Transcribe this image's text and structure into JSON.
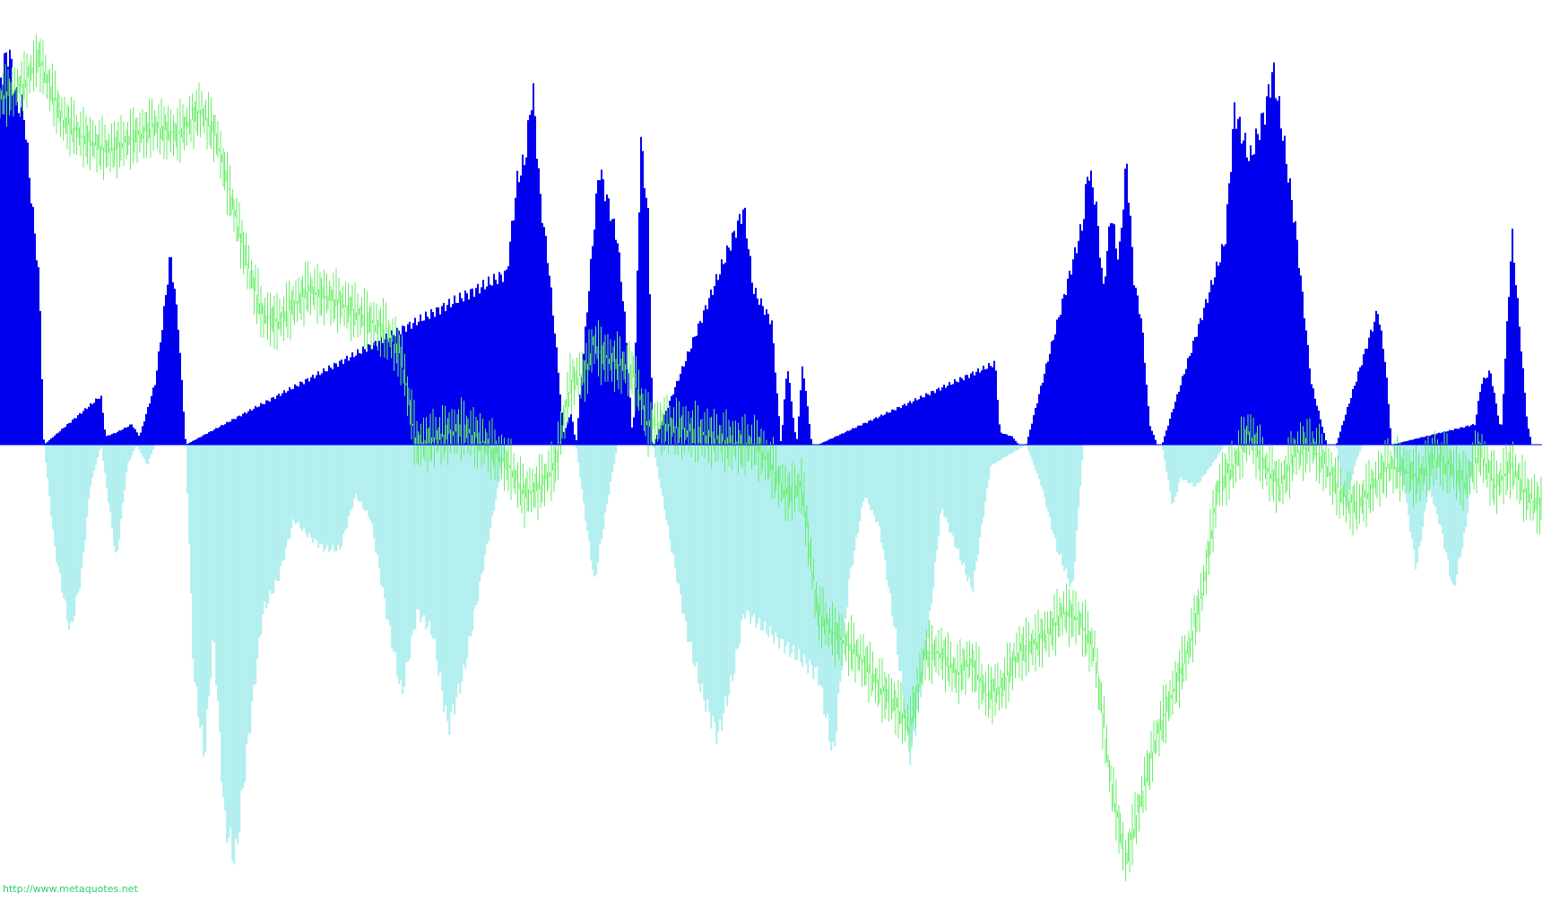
{
  "watermark": "http://www.metaquotes.net",
  "colors": {
    "background": "#ffffff",
    "positive_histogram": "#0000ee",
    "negative_histogram": "#afeeee",
    "price_line": "#66ee66"
  },
  "chart_data": {
    "type": "area",
    "title": "",
    "xlabel": "",
    "ylabel": "",
    "grid": false,
    "legend": "none",
    "x_range": [
      0,
      100
    ],
    "ylim": [
      -1,
      1
    ],
    "series": [
      {
        "kind": "histogram",
        "color": "#0000ee",
        "baseline": 0,
        "x": [
          0,
          0.5,
          1.0,
          1.5,
          2.0,
          2.5,
          2.8,
          6.5,
          6.8,
          7.5,
          8.5,
          9.0,
          10.0,
          10.5,
          11.0,
          11.5,
          12.0,
          32.8,
          33.5,
          34.0,
          34.5,
          35.0,
          35.5,
          36.0,
          36.5,
          37.0,
          37.3,
          38.5,
          38.8,
          40.0,
          40.5,
          41.0,
          41.5,
          42.0,
          42.3,
          48.2,
          48.8,
          49.4,
          50.0,
          50.6,
          51.0,
          51.6,
          52.0,
          52.6,
          53.0,
          64.5,
          64.8,
          65.6,
          66.0,
          66.5,
          70.2,
          70.5,
          71.0,
          71.5,
          72.0,
          72.5,
          73.0,
          73.5,
          74.0,
          74.5,
          75.0,
          75.3,
          79.4,
          80.0,
          81.0,
          82.0,
          82.5,
          83.0,
          84.0,
          85.0,
          86.0,
          86.6,
          89.3,
          89.8,
          90.2,
          95.6,
          96.0,
          96.6,
          97.3,
          98.0,
          98.3,
          99.0,
          99.3
        ],
        "y": [
          0.9,
          0.97,
          0.85,
          0.82,
          0.6,
          0.4,
          0,
          0.12,
          0.02,
          0.03,
          0.05,
          0.02,
          0.15,
          0.3,
          0.47,
          0.3,
          0,
          0.42,
          0.65,
          0.7,
          0.88,
          0.6,
          0.45,
          0.25,
          0.03,
          0.08,
          0,
          0.55,
          0.68,
          0.5,
          0.3,
          0,
          0.75,
          0.55,
          0,
          0.58,
          0.38,
          0.34,
          0.3,
          0.0,
          0.2,
          0.0,
          0.2,
          0.0,
          0.0,
          0.2,
          0.03,
          0.02,
          0.0,
          0.0,
          0.55,
          0.68,
          0.6,
          0.38,
          0.57,
          0.45,
          0.7,
          0.4,
          0.3,
          0.05,
          0,
          0,
          0.5,
          0.82,
          0.7,
          0.82,
          0.92,
          0.8,
          0.52,
          0.15,
          0,
          0,
          0.33,
          0.2,
          0,
          0.05,
          0.15,
          0.18,
          0.03,
          0.52,
          0.38,
          0.05,
          0
        ]
      },
      {
        "kind": "histogram",
        "color": "#afeeee",
        "baseline": 0,
        "x": [
          2.8,
          3.5,
          4.5,
          5.2,
          5.8,
          6.5,
          7.5,
          8.2,
          8.8,
          9.5,
          10.0,
          12.0,
          12.5,
          13.2,
          13.8,
          14.5,
          15.2,
          16.0,
          17.0,
          18.0,
          19.0,
          20.0,
          21.0,
          22.0,
          23.0,
          24.0,
          25.0,
          26.0,
          27.0,
          28.0,
          29.0,
          30.0,
          31.0,
          32.0,
          32.8,
          37.3,
          38.0,
          38.5,
          39.5,
          40.0,
          42.3,
          43.5,
          44.5,
          45.5,
          46.5,
          47.5,
          48.2,
          53.0,
          54.0,
          55.0,
          56.0,
          57.0,
          58.0,
          59.0,
          60.0,
          61.0,
          62.0,
          63.0,
          64.2,
          66.5,
          67.5,
          68.5,
          69.5,
          70.2,
          75.3,
          76.0,
          76.5,
          77.5,
          78.5,
          79.4,
          86.6,
          87.2,
          87.8,
          88.5,
          89.3,
          90.2,
          91.0,
          91.8,
          92.6,
          93.4,
          94.2,
          95.0,
          95.6,
          98.3,
          99.3,
          100.0
        ],
        "y": [
          0,
          -0.25,
          -0.45,
          -0.32,
          -0.1,
          0,
          -0.28,
          -0.05,
          0,
          -0.05,
          0,
          0,
          -0.55,
          -0.75,
          -0.45,
          -0.9,
          -1.0,
          -0.72,
          -0.4,
          -0.32,
          -0.18,
          -0.22,
          -0.25,
          -0.25,
          -0.12,
          -0.18,
          -0.4,
          -0.6,
          -0.4,
          -0.45,
          -0.68,
          -0.55,
          -0.35,
          -0.15,
          0,
          0,
          -0.2,
          -0.33,
          -0.1,
          0,
          0,
          -0.25,
          -0.45,
          -0.6,
          -0.7,
          -0.55,
          -0.4,
          -0.55,
          -0.75,
          -0.33,
          -0.12,
          -0.2,
          -0.45,
          -0.75,
          -0.5,
          -0.15,
          -0.25,
          -0.35,
          -0.05,
          0,
          -0.1,
          -0.25,
          -0.35,
          0,
          0,
          -0.15,
          -0.08,
          -0.1,
          -0.05,
          0,
          0,
          -0.15,
          -0.05,
          0.02,
          0,
          0,
          -0.1,
          -0.3,
          -0.1,
          -0.2,
          -0.35,
          -0.2,
          0,
          0,
          0,
          0
        ]
      },
      {
        "kind": "line",
        "color": "#66ee66",
        "x": [
          0,
          1.5,
          2.5,
          4.0,
          5.5,
          7.0,
          8.5,
          10.0,
          11.5,
          13.0,
          14.0,
          15.0,
          16.0,
          17.0,
          18.0,
          20.0,
          22.0,
          24.0,
          25.0,
          26.0,
          27.0,
          28.5,
          30.0,
          31.5,
          33.0,
          34.0,
          35.0,
          36.0,
          37.0,
          38.0,
          38.5,
          39.0,
          40.0,
          41.0,
          42.0,
          43.0,
          44.0,
          45.0,
          46.0,
          47.0,
          48.0,
          49.0,
          50.0,
          51.0,
          52.0,
          53.0,
          54.0,
          55.0,
          56.0,
          57.0,
          58.0,
          59.0,
          60.0,
          61.0,
          62.0,
          63.0,
          64.0,
          65.0,
          66.0,
          67.0,
          68.0,
          69.0,
          70.0,
          71.0,
          72.0,
          73.0,
          74.0,
          75.0,
          76.0,
          77.0,
          78.0,
          79.0,
          80.0,
          81.0,
          82.0,
          83.0,
          84.0,
          85.0,
          86.0,
          87.0,
          88.0,
          89.0,
          90.0,
          91.0,
          92.0,
          93.0,
          94.0,
          95.0,
          96.0,
          97.0,
          98.0,
          99.0,
          100.0
        ],
        "y": [
          0.85,
          0.88,
          0.95,
          0.8,
          0.75,
          0.72,
          0.75,
          0.78,
          0.76,
          0.82,
          0.76,
          0.6,
          0.45,
          0.32,
          0.3,
          0.38,
          0.35,
          0.3,
          0.28,
          0.22,
          0.0,
          0.02,
          0.04,
          0.0,
          -0.05,
          -0.12,
          -0.1,
          -0.05,
          0.15,
          0.18,
          0.25,
          0.22,
          0.2,
          0.18,
          0.05,
          0.05,
          0.04,
          0.03,
          0.02,
          0.01,
          0.0,
          0.0,
          -0.05,
          -0.12,
          -0.1,
          -0.4,
          -0.45,
          -0.48,
          -0.52,
          -0.58,
          -0.62,
          -0.68,
          -0.5,
          -0.5,
          -0.55,
          -0.52,
          -0.6,
          -0.58,
          -0.5,
          -0.48,
          -0.45,
          -0.4,
          -0.42,
          -0.5,
          -0.8,
          -1.0,
          -0.85,
          -0.7,
          -0.6,
          -0.5,
          -0.35,
          -0.1,
          -0.05,
          0.03,
          -0.05,
          -0.1,
          -0.02,
          0.0,
          -0.05,
          -0.12,
          -0.15,
          -0.1,
          -0.05,
          -0.06,
          -0.08,
          -0.03,
          -0.05,
          -0.09,
          -0.02,
          -0.1,
          -0.05,
          -0.12,
          -0.15
        ]
      }
    ]
  }
}
